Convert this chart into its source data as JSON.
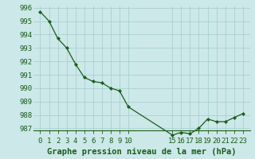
{
  "x": [
    0,
    1,
    2,
    3,
    4,
    5,
    6,
    7,
    8,
    9,
    10,
    15,
    16,
    17,
    18,
    19,
    20,
    21,
    22,
    23
  ],
  "y": [
    995.7,
    995.0,
    993.7,
    993.0,
    991.8,
    990.8,
    990.5,
    990.4,
    990.0,
    989.8,
    988.6,
    986.5,
    986.7,
    986.6,
    987.0,
    987.7,
    987.5,
    987.5,
    987.8,
    988.1
  ],
  "line_color": "#1a5c1a",
  "marker_color": "#1a5c1a",
  "bg_color": "#cce8e8",
  "grid_color": "#aacfcf",
  "xlabel": "Graphe pression niveau de la mer (hPa)",
  "ylim_min": 987,
  "ylim_max": 996,
  "yticks": [
    987,
    988,
    989,
    990,
    991,
    992,
    993,
    994,
    995,
    996
  ],
  "xticks": [
    0,
    1,
    2,
    3,
    4,
    5,
    6,
    7,
    8,
    9,
    10,
    15,
    16,
    17,
    18,
    19,
    20,
    21,
    22,
    23
  ],
  "title_fontsize": 7.5,
  "tick_fontsize": 6.5,
  "title_color": "#1a5c1a",
  "tick_color": "#1a5c1a"
}
